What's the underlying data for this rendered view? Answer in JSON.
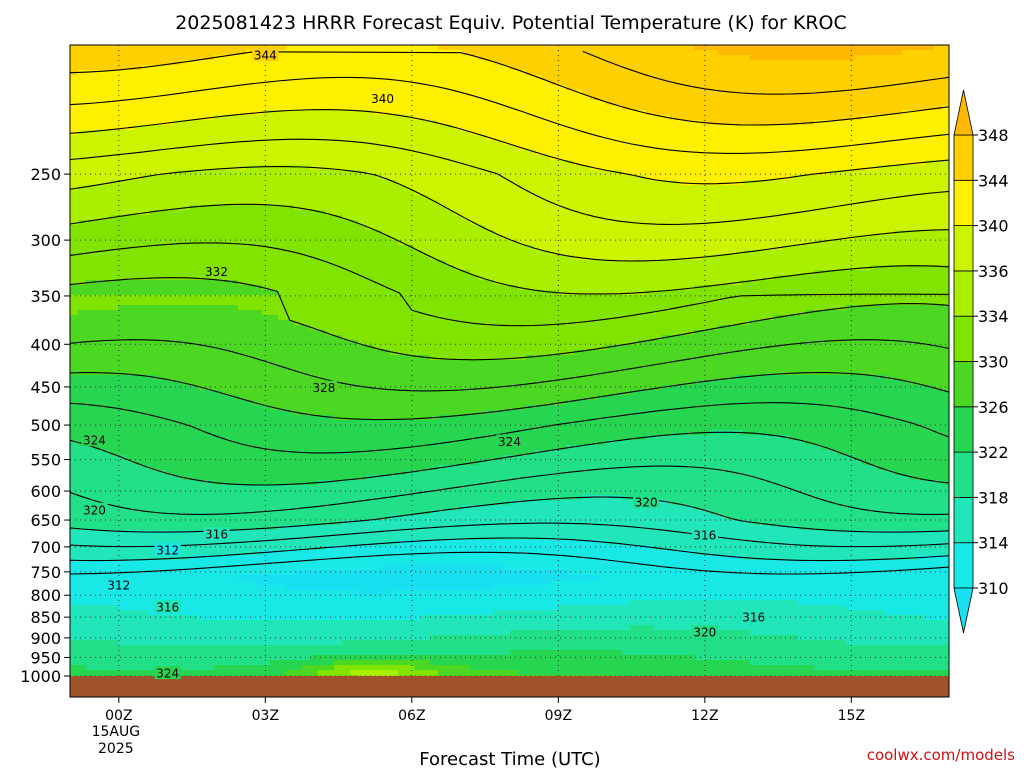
{
  "chart_data": {
    "type": "contour",
    "title": "2025081423 HRRR Forecast Equiv. Potential Temperature (K) for KROC",
    "xlabel": "Forecast Time (UTC)",
    "ylabel": "",
    "credit": "coolwx.com/models",
    "x_ticks": [
      {
        "hour": 1,
        "label": "00Z",
        "sub": [
          "15AUG",
          "2025"
        ]
      },
      {
        "hour": 4,
        "label": "03Z",
        "sub": []
      },
      {
        "hour": 7,
        "label": "06Z",
        "sub": []
      },
      {
        "hour": 10,
        "label": "09Z",
        "sub": []
      },
      {
        "hour": 13,
        "label": "12Z",
        "sub": []
      },
      {
        "hour": 16,
        "label": "15Z",
        "sub": []
      }
    ],
    "xlim_hours_after_2025081423": [
      0,
      18
    ],
    "y_axis_pressure_hPa": {
      "ticks": [
        250,
        300,
        350,
        400,
        450,
        500,
        550,
        600,
        650,
        700,
        750,
        800,
        850,
        900,
        950,
        1000
      ],
      "range": [
        175,
        1000
      ],
      "scale": "log",
      "inverted": true
    },
    "ground_fill_color": "#a0522d",
    "colorbar": {
      "levels": [
        310,
        314,
        318,
        322,
        326,
        330,
        334,
        336,
        340,
        344,
        348
      ],
      "colors": [
        "#18e8e6",
        "#20e6ba",
        "#22e088",
        "#26d650",
        "#4cd822",
        "#80e400",
        "#aaee00",
        "#ccf400",
        "#fff000",
        "#ffd000"
      ],
      "extend": "both",
      "under_color": "#18e0f0",
      "over_color": "#ffb800"
    },
    "contour_labels": [
      {
        "value": 344,
        "hour": 4.0,
        "p": 180
      },
      {
        "value": 340,
        "hour": 6.4,
        "p": 203
      },
      {
        "value": 332,
        "hour": 3.0,
        "p": 327
      },
      {
        "value": 328,
        "hour": 5.2,
        "p": 451
      },
      {
        "value": 324,
        "hour": 0.5,
        "p": 521
      },
      {
        "value": 324,
        "hour": 9.0,
        "p": 523
      },
      {
        "value": 320,
        "hour": 0.5,
        "p": 632
      },
      {
        "value": 320,
        "hour": 11.8,
        "p": 618
      },
      {
        "value": 316,
        "hour": 3.0,
        "p": 676
      },
      {
        "value": 316,
        "hour": 13.0,
        "p": 677
      },
      {
        "value": 312,
        "hour": 2.0,
        "p": 706
      },
      {
        "value": 312,
        "hour": 1.0,
        "p": 778
      },
      {
        "value": 316,
        "hour": 2.0,
        "p": 827
      },
      {
        "value": 316,
        "hour": 14.0,
        "p": 850
      },
      {
        "value": 320,
        "hour": 13.0,
        "p": 886
      },
      {
        "value": 324,
        "hour": 2.0,
        "p": 992
      }
    ]
  }
}
